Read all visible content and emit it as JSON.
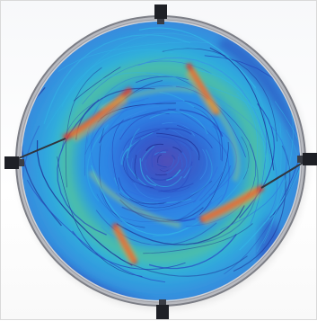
{
  "view": {
    "kind": "cfd-flow-trajectories-top-view",
    "background_color": "#ffffff",
    "rim_color": "#8c8c94",
    "colormap": [
      "#1b2a8f",
      "#2f6fe0",
      "#33b7e6",
      "#47d98c",
      "#c8e24b",
      "#f2a33a",
      "#e23b2a"
    ],
    "inlet_count": 4,
    "icons": [
      "nozzle-top",
      "nozzle-left",
      "nozzle-right",
      "nozzle-bottom"
    ]
  }
}
